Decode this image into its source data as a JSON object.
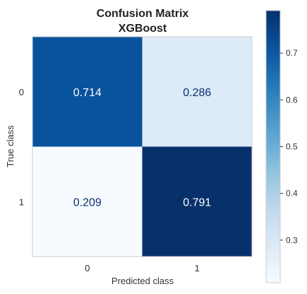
{
  "chart_data": {
    "type": "heatmap",
    "title_lines": [
      "Confusion Matrix",
      "XGBoost"
    ],
    "xlabel": "Predicted class",
    "ylabel": "True class",
    "x_categories": [
      "0",
      "1"
    ],
    "y_categories": [
      "0",
      "1"
    ],
    "values": [
      [
        0.714,
        0.286
      ],
      [
        0.209,
        0.791
      ]
    ],
    "colormap": "Blues",
    "color_range": [
      0.209,
      0.791
    ],
    "colorbar_ticks": [
      0.3,
      0.4,
      0.5,
      0.6,
      0.7
    ],
    "colorbar_tick_labels": [
      "0.3",
      "0.4",
      "0.5",
      "0.6",
      "0.7"
    ],
    "grid": false
  }
}
